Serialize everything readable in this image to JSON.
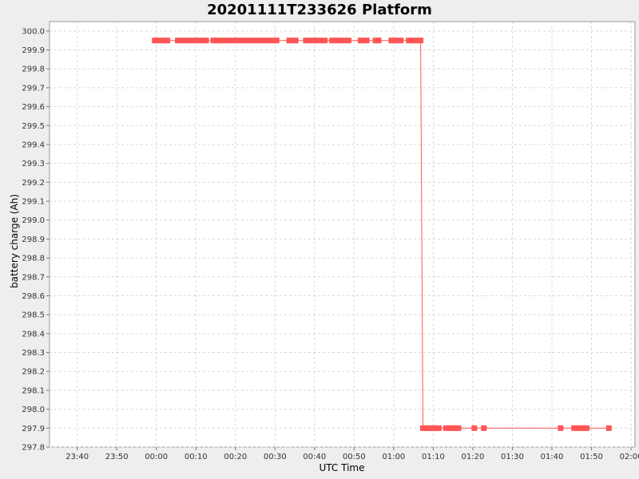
{
  "chart_data": {
    "type": "line",
    "title": "20201111T233626 Platform",
    "xlabel": "UTC Time",
    "ylabel": "battery charge (Ah)",
    "xlim": [
      "2020-11-11 23:33",
      "2020-11-12 02:01"
    ],
    "ylim": [
      297.8,
      300.05
    ],
    "x_ticks": [
      "23:40",
      "23:50",
      "00:00",
      "00:10",
      "00:20",
      "00:30",
      "00:40",
      "00:50",
      "01:00",
      "01:10",
      "01:20",
      "01:30",
      "01:40",
      "01:50",
      "02:00"
    ],
    "y_ticks": [
      "297.8",
      "297.9",
      "298.0",
      "298.1",
      "298.2",
      "298.3",
      "298.4",
      "298.5",
      "298.6",
      "298.7",
      "298.8",
      "298.9",
      "299.0",
      "299.1",
      "299.2",
      "299.3",
      "299.4",
      "299.5",
      "299.6",
      "299.7",
      "299.8",
      "299.9",
      "300.0"
    ],
    "grid": true,
    "series_color": "#ff5555",
    "series": [
      {
        "x": [
          "2020-11-11 23:59:36",
          "2020-11-12 00:00:24",
          "2020-11-12 00:01:12",
          "2020-11-12 00:02:00",
          "2020-11-12 00:02:48",
          "2020-11-12 00:05:24",
          "2020-11-12 00:06:12",
          "2020-11-12 00:07:00",
          "2020-11-12 00:07:48",
          "2020-11-12 00:08:36",
          "2020-11-12 00:09:24",
          "2020-11-12 00:10:12",
          "2020-11-12 00:11:00",
          "2020-11-12 00:11:48",
          "2020-11-12 00:12:36",
          "2020-11-12 00:14:24",
          "2020-11-12 00:15:12",
          "2020-11-12 00:16:00",
          "2020-11-12 00:16:48",
          "2020-11-12 00:17:36",
          "2020-11-12 00:18:24",
          "2020-11-12 00:19:12",
          "2020-11-12 00:20:00",
          "2020-11-12 00:20:48",
          "2020-11-12 00:21:36",
          "2020-11-12 00:22:24",
          "2020-11-12 00:23:12",
          "2020-11-12 00:24:00",
          "2020-11-12 00:24:48",
          "2020-11-12 00:25:36",
          "2020-11-12 00:26:24",
          "2020-11-12 00:27:12",
          "2020-11-12 00:28:00",
          "2020-11-12 00:28:48",
          "2020-11-12 00:29:36",
          "2020-11-12 00:30:24",
          "2020-11-12 00:33:36",
          "2020-11-12 00:34:24",
          "2020-11-12 00:35:12",
          "2020-11-12 00:37:48",
          "2020-11-12 00:38:36",
          "2020-11-12 00:39:24",
          "2020-11-12 00:40:12",
          "2020-11-12 00:41:00",
          "2020-11-12 00:41:48",
          "2020-11-12 00:42:36",
          "2020-11-12 00:44:24",
          "2020-11-12 00:45:12",
          "2020-11-12 00:46:00",
          "2020-11-12 00:46:48",
          "2020-11-12 00:48:00",
          "2020-11-12 00:48:36",
          "2020-11-12 00:51:36",
          "2020-11-12 00:52:24",
          "2020-11-12 00:53:12",
          "2020-11-12 00:55:24",
          "2020-11-12 00:56:12",
          "2020-11-12 00:59:24",
          "2020-11-12 01:00:12",
          "2020-11-12 01:01:00",
          "2020-11-12 01:01:48",
          "2020-11-12 01:03:48",
          "2020-11-12 01:04:36",
          "2020-11-12 01:05:24",
          "2020-11-12 01:06:12",
          "2020-11-12 01:06:48",
          "2020-11-12 01:07:24",
          "2020-11-12 01:08:12",
          "2020-11-12 01:09:00",
          "2020-11-12 01:09:48",
          "2020-11-12 01:10:36",
          "2020-11-12 01:11:24",
          "2020-11-12 01:13:12",
          "2020-11-12 01:14:00",
          "2020-11-12 01:14:48",
          "2020-11-12 01:15:36",
          "2020-11-12 01:16:24",
          "2020-11-12 01:20:24",
          "2020-11-12 01:22:48",
          "2020-11-12 01:42:12",
          "2020-11-12 01:45:36",
          "2020-11-12 01:46:24",
          "2020-11-12 01:47:12",
          "2020-11-12 01:48:00",
          "2020-11-12 01:48:48",
          "2020-11-12 01:54:24"
        ],
        "values": [
          299.95,
          299.95,
          299.95,
          299.95,
          299.95,
          299.95,
          299.95,
          299.95,
          299.95,
          299.95,
          299.95,
          299.95,
          299.95,
          299.95,
          299.95,
          299.95,
          299.95,
          299.95,
          299.95,
          299.95,
          299.95,
          299.95,
          299.95,
          299.95,
          299.95,
          299.95,
          299.95,
          299.95,
          299.95,
          299.95,
          299.95,
          299.95,
          299.95,
          299.95,
          299.95,
          299.95,
          299.95,
          299.95,
          299.95,
          299.95,
          299.95,
          299.95,
          299.95,
          299.95,
          299.95,
          299.95,
          299.95,
          299.95,
          299.95,
          299.95,
          299.95,
          299.95,
          299.95,
          299.95,
          299.95,
          299.95,
          299.95,
          299.95,
          299.95,
          299.95,
          299.95,
          299.95,
          299.95,
          299.95,
          299.95,
          299.95,
          297.9,
          297.9,
          297.9,
          297.9,
          297.9,
          297.9,
          297.9,
          297.9,
          297.9,
          297.9,
          297.9,
          297.9,
          297.9,
          297.9,
          297.9,
          297.9,
          297.9,
          297.9,
          297.9,
          297.9
        ]
      }
    ]
  }
}
